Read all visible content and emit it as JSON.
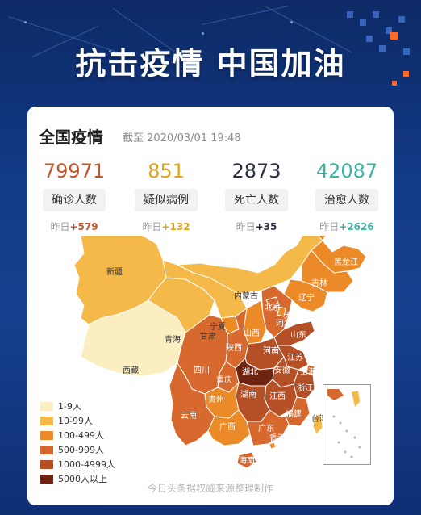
{
  "banner": {
    "title": "抗击疫情 中国加油"
  },
  "card": {
    "title": "全国疫情",
    "timestamp": "截至 2020/03/01 19:48"
  },
  "stats": [
    {
      "value": "79971",
      "label": "确诊人数",
      "delta_prefix": "昨日",
      "delta": "+579",
      "color": "#c2572b"
    },
    {
      "value": "851",
      "label": "疑似病例",
      "delta_prefix": "昨日",
      "delta": "+132",
      "color": "#e3a21a"
    },
    {
      "value": "2873",
      "label": "死亡人数",
      "delta_prefix": "昨日",
      "delta": "+35",
      "color": "#2b2f45"
    },
    {
      "value": "42087",
      "label": "治愈人数",
      "delta_prefix": "昨日",
      "delta": "+2626",
      "color": "#3bb3a3"
    }
  ],
  "map": {
    "provinces": [
      "黑龙江",
      "吉林",
      "辽宁",
      "内蒙古",
      "北京",
      "天津",
      "河北",
      "山西",
      "山东",
      "新疆",
      "宁夏",
      "青海",
      "甘肃",
      "陕西",
      "河南",
      "江苏",
      "安徽",
      "上海",
      "湖北",
      "浙江",
      "西藏",
      "四川",
      "重庆",
      "湖南",
      "江西",
      "贵州",
      "福建",
      "云南",
      "广西",
      "广东",
      "台湾",
      "香港",
      "海南"
    ],
    "colors": {
      "level1": "#fbeec0",
      "level2": "#f5b94a",
      "level3": "#ec8a28",
      "level4": "#d8692e",
      "level5": "#b54f25",
      "level6": "#6e2410"
    }
  },
  "legend": [
    {
      "label": "1-9人",
      "color": "#fbeec0"
    },
    {
      "label": "10-99人",
      "color": "#f5b94a"
    },
    {
      "label": "100-499人",
      "color": "#ec8a28"
    },
    {
      "label": "500-999人",
      "color": "#d8692e"
    },
    {
      "label": "1000-4999人",
      "color": "#b54f25"
    },
    {
      "label": "5000人以上",
      "color": "#6e2410"
    }
  ],
  "footer": {
    "note": "今日头条据权威来源整理制作"
  }
}
